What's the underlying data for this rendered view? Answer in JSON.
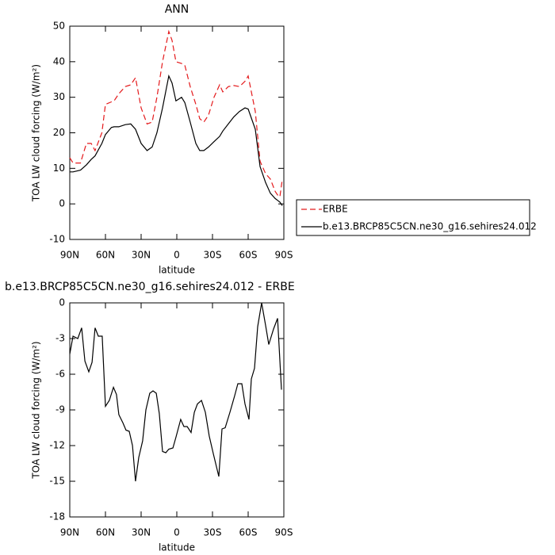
{
  "chart_data": [
    {
      "type": "line",
      "title": "ANN",
      "xlabel": "latitude",
      "ylabel": "TOA LW cloud forcing (W/m²)",
      "x": [
        90,
        87.3,
        81,
        76,
        72,
        68.7,
        63,
        60,
        55,
        52.7,
        48.7,
        43.3,
        38.7,
        34.7,
        30,
        25,
        20.7,
        16.7,
        12,
        6.7,
        4,
        0.7,
        -4,
        -6.7,
        -11.3,
        -16,
        -19.3,
        -22.7,
        -26.7,
        -31.3,
        -36,
        -38.7,
        -43.3,
        -48,
        -52.7,
        -57.3,
        -60,
        -66,
        -70,
        -74.7,
        -78.7,
        -82.7,
        -84.7,
        -86.7,
        -88.7
      ],
      "series": [
        {
          "name": "ERBE",
          "color": "#e41a1c",
          "dash": true,
          "values": [
            13,
            11.5,
            11.5,
            17,
            17,
            15,
            20,
            28,
            28.7,
            29,
            31,
            33,
            33.5,
            35.5,
            27,
            22.5,
            23,
            30,
            40,
            48.5,
            46,
            40,
            39.5,
            39,
            33,
            28,
            24,
            23,
            25,
            30,
            33.5,
            31.5,
            33,
            33.3,
            33,
            34.5,
            36,
            26,
            12,
            8.5,
            7,
            3.5,
            2.5,
            2,
            7
          ]
        },
        {
          "name": "b.e13.BRCP85C5CN.ne30_g16.sehires24.012",
          "color": "#000000",
          "dash": false,
          "values": [
            9,
            9,
            9.5,
            11,
            12.5,
            13.5,
            17,
            19.5,
            21.5,
            21.7,
            21.7,
            22.3,
            22.5,
            21,
            17,
            15,
            16,
            20,
            27,
            36,
            34,
            29,
            30,
            28.5,
            23,
            17,
            15,
            15,
            16,
            17.5,
            19,
            20.5,
            22.5,
            24.5,
            26,
            27,
            26.7,
            21,
            10.5,
            6,
            3,
            1.5,
            1,
            0.5,
            -0.5
          ]
        }
      ],
      "xlim": [
        90,
        -90
      ],
      "xticks": [
        {
          "value": 90,
          "label": "90N"
        },
        {
          "value": 60,
          "label": "60N"
        },
        {
          "value": 30,
          "label": "30N"
        },
        0,
        {
          "value": -30,
          "label": "30S"
        },
        {
          "value": -60,
          "label": "60S"
        },
        {
          "value": -90,
          "label": "90S"
        }
      ],
      "ylim": [
        -10,
        50
      ],
      "yticks": [
        -10,
        0,
        10,
        20,
        30,
        40,
        50
      ],
      "legend": "right",
      "grid": false
    },
    {
      "type": "line",
      "title": "b.e13.BRCP85C5CN.ne30_g16.sehires24.012 - ERBE",
      "xlabel": "latitude",
      "ylabel": "TOA LW cloud forcing (W/m²)",
      "x": [
        90,
        87.3,
        83.3,
        80,
        77.3,
        74,
        71.3,
        68.7,
        66,
        62.7,
        60,
        56.7,
        53.3,
        50.7,
        48.7,
        45.3,
        42.7,
        40,
        37.3,
        34.7,
        32,
        28.7,
        26,
        22.7,
        20,
        17.3,
        14.7,
        12,
        9.3,
        6.7,
        3.3,
        0.7,
        -3.3,
        -6,
        -8.7,
        -12,
        -14.7,
        -17.3,
        -20.7,
        -24,
        -27.3,
        -30.7,
        -35.3,
        -38,
        -40.7,
        -44.7,
        -48.7,
        -51.3,
        -54.7,
        -57.3,
        -60.7,
        -62.7,
        -65.3,
        -68,
        -71.3,
        -74.7,
        -77.3,
        -81.3,
        -84.7,
        -88
      ],
      "series": [
        {
          "name": null,
          "color": "#000000",
          "dash": false,
          "values": [
            -4.3,
            -2.8,
            -3,
            -2.1,
            -4.9,
            -5.8,
            -5,
            -2.1,
            -2.8,
            -2.8,
            -8.7,
            -8.2,
            -7.1,
            -7.7,
            -9.4,
            -10.1,
            -10.7,
            -10.8,
            -12,
            -15,
            -13,
            -11.6,
            -9,
            -7.6,
            -7.4,
            -7.6,
            -9.3,
            -12.5,
            -12.6,
            -12.3,
            -12.2,
            -11.3,
            -9.8,
            -10.4,
            -10.4,
            -10.9,
            -9.2,
            -8.5,
            -8.2,
            -9.2,
            -11.2,
            -12.7,
            -14.6,
            -10.6,
            -10.5,
            -9.2,
            -7.8,
            -6.8,
            -6.8,
            -8.5,
            -9.8,
            -6.4,
            -5.5,
            -2,
            0,
            -1.9,
            -3.5,
            -2.2,
            -1.3,
            -7.3
          ]
        }
      ],
      "xlim": [
        90,
        -90
      ],
      "xticks": [
        {
          "value": 90,
          "label": "90N"
        },
        {
          "value": 60,
          "label": "60N"
        },
        {
          "value": 30,
          "label": "30N"
        },
        0,
        {
          "value": -30,
          "label": "30S"
        },
        {
          "value": -60,
          "label": "60S"
        },
        {
          "value": -90,
          "label": "90S"
        }
      ],
      "ylim": [
        -18,
        0
      ],
      "yticks": [
        -18,
        -15,
        -12,
        -9,
        -6,
        -3,
        0
      ],
      "grid": false
    }
  ]
}
